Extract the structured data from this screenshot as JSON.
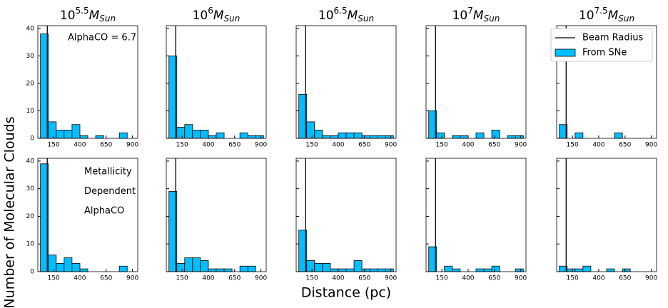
{
  "figure": {
    "xlabel": "Distance (pc)",
    "ylabel": "Number of Molecular Clouds"
  },
  "chart_data": [
    {
      "type": "histogram",
      "title": [
        "10",
        "5.5",
        "M",
        "Sun"
      ],
      "bins": [
        25,
        100,
        175,
        250,
        325,
        400,
        475,
        550,
        625,
        700,
        775,
        850,
        925
      ],
      "values": [
        38,
        6,
        3,
        3,
        5,
        1,
        0,
        1,
        0,
        0,
        2,
        0
      ],
      "color": "#00bfff",
      "xlim": [
        0,
        950
      ],
      "xticks": [
        150,
        400,
        650,
        900
      ],
      "ylim": [
        0,
        41
      ],
      "yticks": [
        0,
        10,
        20,
        30,
        40
      ],
      "show_yticklabels": true,
      "vline": 90,
      "annotations": [
        "AlphaCO = 6.7"
      ]
    },
    {
      "type": "histogram",
      "title": [
        "10",
        "6",
        "M",
        "Sun"
      ],
      "bins": [
        25,
        100,
        175,
        250,
        325,
        400,
        475,
        550,
        625,
        700,
        775,
        850,
        925
      ],
      "values": [
        30,
        4,
        5,
        3,
        3,
        1,
        2,
        0,
        0,
        2,
        1,
        1
      ],
      "color": "#00bfff",
      "xlim": [
        0,
        950
      ],
      "xticks": [
        150,
        400,
        650,
        900
      ],
      "ylim": [
        0,
        41
      ],
      "yticks": [
        0,
        10,
        20,
        30,
        40
      ],
      "show_yticklabels": false,
      "vline": 90
    },
    {
      "type": "histogram",
      "title": [
        "10",
        "6.5",
        "M",
        "Sun"
      ],
      "bins": [
        25,
        100,
        175,
        250,
        325,
        400,
        475,
        550,
        625,
        700,
        775,
        850,
        925
      ],
      "values": [
        16,
        6,
        3,
        1,
        1,
        2,
        2,
        2,
        1,
        1,
        1,
        1
      ],
      "color": "#00bfff",
      "xlim": [
        0,
        950
      ],
      "xticks": [
        150,
        400,
        650,
        900
      ],
      "ylim": [
        0,
        41
      ],
      "yticks": [
        0,
        10,
        20,
        30,
        40
      ],
      "show_yticklabels": false,
      "vline": 90
    },
    {
      "type": "histogram",
      "title": [
        "10",
        "7",
        "M",
        "Sun"
      ],
      "bins": [
        25,
        100,
        175,
        250,
        325,
        400,
        475,
        550,
        625,
        700,
        775,
        850,
        925
      ],
      "values": [
        10,
        2,
        0,
        1,
        1,
        0,
        2,
        0,
        3,
        0,
        1,
        1
      ],
      "color": "#00bfff",
      "xlim": [
        0,
        950
      ],
      "xticks": [
        150,
        400,
        650,
        900
      ],
      "ylim": [
        0,
        41
      ],
      "yticks": [
        0,
        10,
        20,
        30,
        40
      ],
      "show_yticklabels": false,
      "vline": 90
    },
    {
      "type": "histogram",
      "title": [
        "10",
        "7.5",
        "M",
        "Sun"
      ],
      "bins": [
        25,
        100,
        175,
        250,
        325,
        400,
        475,
        550,
        625,
        700,
        775,
        850,
        925
      ],
      "values": [
        5,
        0,
        2,
        0,
        0,
        0,
        0,
        2,
        0,
        0,
        0,
        0
      ],
      "color": "#00bfff",
      "xlim": [
        0,
        950
      ],
      "xticks": [
        150,
        400,
        650,
        900
      ],
      "ylim": [
        0,
        41
      ],
      "yticks": [
        0,
        10,
        20,
        30,
        40
      ],
      "show_yticklabels": false,
      "vline": 90,
      "name": "From SNe",
      "vline_name": "Beam Radius",
      "legend": "upper right"
    },
    {
      "type": "histogram",
      "bins": [
        25,
        100,
        175,
        250,
        325,
        400,
        475,
        550,
        625,
        700,
        775,
        850,
        925
      ],
      "values": [
        39,
        6,
        3,
        5,
        3,
        1,
        0,
        0,
        0,
        0,
        2,
        0
      ],
      "color": "#00bfff",
      "xlim": [
        0,
        950
      ],
      "xticks": [
        150,
        400,
        650,
        900
      ],
      "ylim": [
        0,
        41
      ],
      "yticks": [
        0,
        10,
        20,
        30,
        40
      ],
      "show_yticklabels": true,
      "vline": 90,
      "annotations": [
        "Metallicity",
        "Dependent",
        "AlphaCO"
      ]
    },
    {
      "type": "histogram",
      "bins": [
        25,
        100,
        175,
        250,
        325,
        400,
        475,
        550,
        625,
        700,
        775,
        850,
        925
      ],
      "values": [
        29,
        3,
        5,
        5,
        4,
        1,
        1,
        1,
        0,
        2,
        2,
        0
      ],
      "color": "#00bfff",
      "xlim": [
        0,
        950
      ],
      "xticks": [
        150,
        400,
        650,
        900
      ],
      "ylim": [
        0,
        41
      ],
      "yticks": [
        0,
        10,
        20,
        30,
        40
      ],
      "show_yticklabels": false,
      "vline": 90
    },
    {
      "type": "histogram",
      "bins": [
        25,
        100,
        175,
        250,
        325,
        400,
        475,
        550,
        625,
        700,
        775,
        850,
        925
      ],
      "values": [
        15,
        4,
        3,
        3,
        1,
        1,
        1,
        4,
        1,
        1,
        1,
        1
      ],
      "color": "#00bfff",
      "xlim": [
        0,
        950
      ],
      "xticks": [
        150,
        400,
        650,
        900
      ],
      "ylim": [
        0,
        41
      ],
      "yticks": [
        0,
        10,
        20,
        30,
        40
      ],
      "show_yticklabels": false,
      "vline": 90
    },
    {
      "type": "histogram",
      "bins": [
        25,
        100,
        175,
        250,
        325,
        400,
        475,
        550,
        625,
        700,
        775,
        850,
        925
      ],
      "values": [
        9,
        0,
        2,
        1,
        0,
        0,
        1,
        1,
        2,
        0,
        0,
        1
      ],
      "color": "#00bfff",
      "xlim": [
        0,
        950
      ],
      "xticks": [
        150,
        400,
        650,
        900
      ],
      "ylim": [
        0,
        41
      ],
      "yticks": [
        0,
        10,
        20,
        30,
        40
      ],
      "show_yticklabels": false,
      "vline": 90
    },
    {
      "type": "histogram",
      "bins": [
        25,
        100,
        175,
        250,
        325,
        400,
        475,
        550,
        625,
        700,
        775,
        850,
        925
      ],
      "values": [
        2,
        1,
        1,
        2,
        0,
        0,
        1,
        0,
        1,
        0,
        0,
        0
      ],
      "color": "#00bfff",
      "xlim": [
        0,
        950
      ],
      "xticks": [
        150,
        400,
        650,
        900
      ],
      "ylim": [
        0,
        41
      ],
      "yticks": [
        0,
        10,
        20,
        30,
        40
      ],
      "show_yticklabels": false,
      "vline": 90
    }
  ]
}
